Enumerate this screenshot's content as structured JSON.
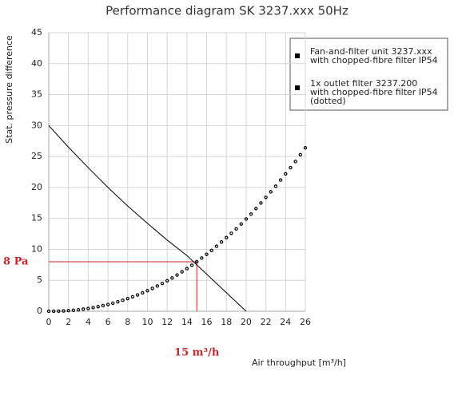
{
  "chart_data": {
    "type": "line",
    "title": "Performance diagram SK 3237.xxx 50Hz",
    "xlabel": "Air throughput [m³/h]",
    "ylabel": "Stat. pressure difference",
    "xlim": [
      0,
      26
    ],
    "xticks": [
      0,
      2,
      4,
      6,
      8,
      10,
      12,
      14,
      16,
      18,
      20,
      22,
      24,
      26
    ],
    "ylim": [
      0,
      45
    ],
    "yticks": [
      0,
      5,
      10,
      15,
      20,
      25,
      30,
      35,
      40,
      45
    ],
    "grid": true,
    "legend": "upper right",
    "series": [
      {
        "name": "Fan-and-filter unit 3237.xxx\nwith chopped-fibre filter IP54",
        "color": "#000000",
        "style": "solid",
        "x": [
          0,
          2,
          4,
          6,
          8,
          10,
          12,
          14,
          16,
          18,
          20
        ],
        "values": [
          30,
          26.5,
          23.2,
          20,
          17,
          14.2,
          11.5,
          9,
          6,
          3,
          0
        ]
      },
      {
        "name": "1x outlet filter 3237.200\nwith chopped-fibre filter IP54\n(dotted)",
        "color": "#000000",
        "style": "dotted",
        "x": [
          0,
          0.5,
          1,
          1.5,
          2,
          2.5,
          3,
          3.5,
          4,
          4.5,
          5,
          5.5,
          6,
          6.5,
          7,
          7.5,
          8,
          8.5,
          9,
          9.5,
          10,
          10.5,
          11,
          11.5,
          12,
          12.5,
          13,
          13.5,
          14,
          14.5,
          15,
          15.5,
          16,
          16.5,
          17,
          17.5,
          18,
          18.5,
          19,
          19.5,
          20,
          20.5,
          21,
          21.5,
          22,
          22.5,
          23,
          23.5,
          24,
          24.5,
          25,
          25.5,
          26
        ],
        "values": [
          0,
          0.01,
          0.02,
          0.05,
          0.1,
          0.16,
          0.24,
          0.34,
          0.45,
          0.59,
          0.74,
          0.91,
          1.09,
          1.3,
          1.53,
          1.78,
          2.04,
          2.33,
          2.64,
          2.97,
          3.32,
          3.69,
          4.08,
          4.49,
          4.93,
          5.38,
          5.86,
          6.37,
          6.89,
          7.43,
          8,
          8.59,
          9.2,
          9.83,
          10.5,
          11.2,
          11.9,
          12.6,
          13.3,
          14.1,
          14.9,
          15.7,
          16.6,
          17.5,
          18.4,
          19.3,
          20.2,
          21.2,
          22.2,
          23.2,
          24.2,
          25.3,
          26.4
        ]
      }
    ],
    "annotation_color": "#c0282d",
    "annotations": [
      {
        "text": "8 Pa",
        "y": 8
      },
      {
        "text": "15 m³/h",
        "x": 15
      }
    ]
  }
}
